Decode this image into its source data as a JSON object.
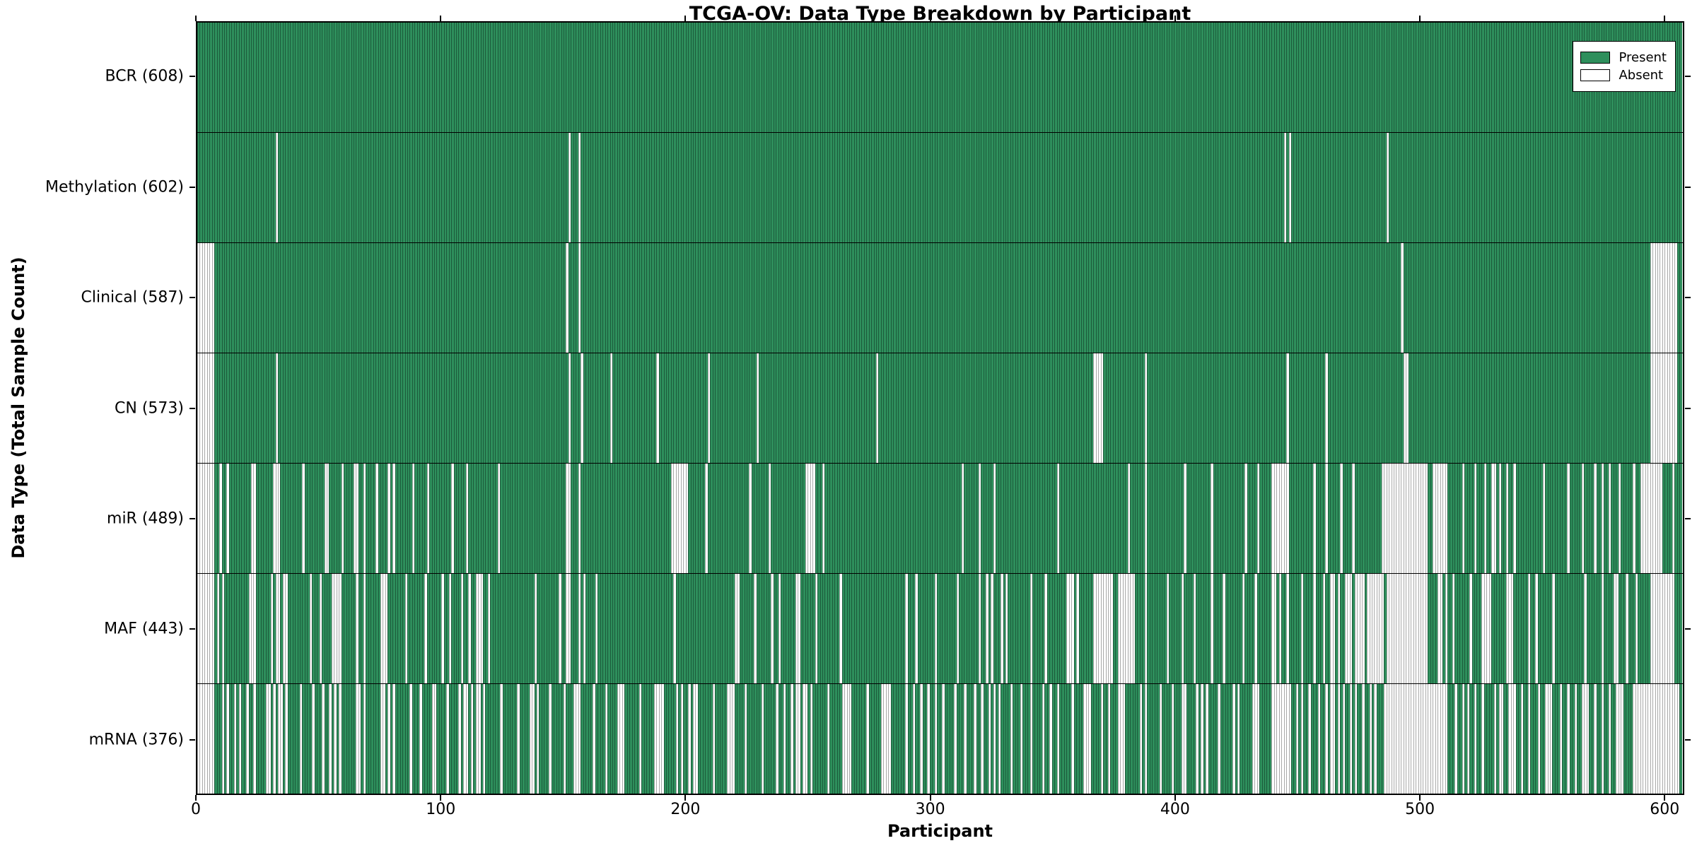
{
  "figure": {
    "title": "TCGA-OV: Data Type Breakdown by Participant",
    "xlabel": "Participant",
    "ylabel": "Data Type (Total Sample Count)"
  },
  "legend": {
    "present_label": "Present",
    "absent_label": "Absent"
  },
  "chart_data": {
    "type": "heatmap",
    "title": "TCGA-OV: Data Type Breakdown by Participant",
    "xlabel": "Participant",
    "ylabel": "Data Type (Total Sample Count)",
    "x_range": [
      0,
      608
    ],
    "n_participants": 608,
    "x_ticks": [
      0,
      100,
      200,
      300,
      400,
      500,
      600
    ],
    "grid": false,
    "legend_position": "upper right",
    "legend": [
      {
        "label": "Present",
        "color": "#2e8f5c"
      },
      {
        "label": "Absent",
        "color": "#ffffff"
      }
    ],
    "colors": {
      "present": "#2e8f5c",
      "present_edge": "rgba(10,40,25,0.5)",
      "absent": "#ffffff",
      "absent_edge": "#a8a8a8",
      "axis": "#000000"
    },
    "rows": [
      {
        "name": "BCR",
        "label": "BCR (608)",
        "present_count": 608,
        "absent_ranges": []
      },
      {
        "name": "Methylation",
        "label": "Methylation (602)",
        "present_count": 602,
        "absent_ranges": [
          [
            32,
            32
          ],
          [
            152,
            152
          ],
          [
            156,
            156
          ],
          [
            445,
            445
          ],
          [
            447,
            447
          ],
          [
            487,
            487
          ]
        ]
      },
      {
        "name": "Clinical",
        "label": "Clinical (587)",
        "present_count": 587,
        "absent_ranges": [
          [
            0,
            6
          ],
          [
            151,
            151
          ],
          [
            156,
            156
          ],
          [
            493,
            493
          ],
          [
            595,
            605
          ]
        ]
      },
      {
        "name": "CN",
        "label": "CN (573)",
        "present_count": 573,
        "absent_ranges": [
          [
            0,
            6
          ],
          [
            32,
            32
          ],
          [
            152,
            152
          ],
          [
            157,
            157
          ],
          [
            169,
            169
          ],
          [
            188,
            188
          ],
          [
            209,
            209
          ],
          [
            229,
            229
          ],
          [
            278,
            278
          ],
          [
            367,
            370
          ],
          [
            388,
            388
          ],
          [
            446,
            446
          ],
          [
            462,
            462
          ],
          [
            494,
            495
          ],
          [
            595,
            605
          ]
        ]
      },
      {
        "name": "miR",
        "label": "miR (489)",
        "present_count": 489,
        "absent_ranges": [
          [
            0,
            6
          ],
          [
            9,
            9
          ],
          [
            12,
            12
          ],
          [
            22,
            23
          ],
          [
            31,
            33
          ],
          [
            43,
            43
          ],
          [
            52,
            53
          ],
          [
            59,
            59
          ],
          [
            64,
            65
          ],
          [
            68,
            68
          ],
          [
            73,
            73
          ],
          [
            78,
            78
          ],
          [
            80,
            80
          ],
          [
            88,
            88
          ],
          [
            94,
            94
          ],
          [
            104,
            104
          ],
          [
            110,
            110
          ],
          [
            123,
            123
          ],
          [
            151,
            152
          ],
          [
            156,
            156
          ],
          [
            194,
            200
          ],
          [
            208,
            208
          ],
          [
            226,
            226
          ],
          [
            234,
            234
          ],
          [
            249,
            252
          ],
          [
            256,
            256
          ],
          [
            313,
            313
          ],
          [
            320,
            320
          ],
          [
            326,
            326
          ],
          [
            352,
            352
          ],
          [
            381,
            381
          ],
          [
            388,
            388
          ],
          [
            404,
            404
          ],
          [
            415,
            415
          ],
          [
            429,
            429
          ],
          [
            434,
            434
          ],
          [
            440,
            446
          ],
          [
            457,
            457
          ],
          [
            462,
            462
          ],
          [
            468,
            468
          ],
          [
            473,
            473
          ],
          [
            485,
            503
          ],
          [
            506,
            511
          ],
          [
            518,
            518
          ],
          [
            523,
            523
          ],
          [
            527,
            527
          ],
          [
            530,
            531
          ],
          [
            533,
            533
          ],
          [
            536,
            536
          ],
          [
            539,
            539
          ],
          [
            551,
            551
          ],
          [
            561,
            561
          ],
          [
            567,
            567
          ],
          [
            572,
            572
          ],
          [
            575,
            575
          ],
          [
            578,
            578
          ],
          [
            582,
            582
          ],
          [
            588,
            588
          ],
          [
            591,
            599
          ],
          [
            604,
            604
          ]
        ]
      },
      {
        "name": "MAF",
        "label": "MAF (443)",
        "present_count": 443,
        "absent_ranges": [
          [
            0,
            6
          ],
          [
            8,
            8
          ],
          [
            10,
            10
          ],
          [
            21,
            23
          ],
          [
            30,
            30
          ],
          [
            32,
            33
          ],
          [
            35,
            36
          ],
          [
            46,
            46
          ],
          [
            50,
            50
          ],
          [
            55,
            58
          ],
          [
            65,
            65
          ],
          [
            68,
            68
          ],
          [
            75,
            77
          ],
          [
            85,
            85
          ],
          [
            93,
            93
          ],
          [
            100,
            100
          ],
          [
            103,
            103
          ],
          [
            108,
            108
          ],
          [
            111,
            111
          ],
          [
            114,
            116
          ],
          [
            119,
            119
          ],
          [
            138,
            138
          ],
          [
            148,
            148
          ],
          [
            151,
            152
          ],
          [
            156,
            156
          ],
          [
            158,
            158
          ],
          [
            163,
            163
          ],
          [
            195,
            195
          ],
          [
            220,
            221
          ],
          [
            228,
            228
          ],
          [
            235,
            235
          ],
          [
            238,
            238
          ],
          [
            245,
            246
          ],
          [
            253,
            253
          ],
          [
            263,
            263
          ],
          [
            290,
            290
          ],
          [
            294,
            294
          ],
          [
            302,
            302
          ],
          [
            311,
            311
          ],
          [
            320,
            320
          ],
          [
            323,
            323
          ],
          [
            325,
            325
          ],
          [
            329,
            329
          ],
          [
            331,
            331
          ],
          [
            341,
            341
          ],
          [
            347,
            347
          ],
          [
            356,
            358
          ],
          [
            360,
            360
          ],
          [
            367,
            374
          ],
          [
            377,
            383
          ],
          [
            388,
            388
          ],
          [
            397,
            397
          ],
          [
            403,
            403
          ],
          [
            408,
            408
          ],
          [
            415,
            415
          ],
          [
            420,
            420
          ],
          [
            428,
            428
          ],
          [
            433,
            433
          ],
          [
            440,
            441
          ],
          [
            443,
            443
          ],
          [
            446,
            446
          ],
          [
            452,
            452
          ],
          [
            457,
            457
          ],
          [
            461,
            461
          ],
          [
            464,
            465
          ],
          [
            467,
            467
          ],
          [
            470,
            472
          ],
          [
            474,
            477
          ],
          [
            479,
            485
          ],
          [
            487,
            503
          ],
          [
            508,
            509
          ],
          [
            511,
            511
          ],
          [
            514,
            514
          ],
          [
            521,
            521
          ],
          [
            526,
            529
          ],
          [
            536,
            538
          ],
          [
            545,
            545
          ],
          [
            548,
            548
          ],
          [
            555,
            555
          ],
          [
            568,
            568
          ],
          [
            575,
            575
          ],
          [
            580,
            581
          ],
          [
            585,
            585
          ],
          [
            589,
            589
          ],
          [
            595,
            604
          ]
        ]
      },
      {
        "name": "mRNA",
        "label": "mRNA (376)",
        "present_count": 376,
        "absent_ranges": [
          [
            0,
            6
          ],
          [
            10,
            10
          ],
          [
            12,
            12
          ],
          [
            15,
            15
          ],
          [
            17,
            17
          ],
          [
            20,
            20
          ],
          [
            23,
            23
          ],
          [
            28,
            29
          ],
          [
            31,
            31
          ],
          [
            33,
            34
          ],
          [
            36,
            36
          ],
          [
            42,
            42
          ],
          [
            47,
            47
          ],
          [
            51,
            51
          ],
          [
            54,
            54
          ],
          [
            56,
            56
          ],
          [
            58,
            58
          ],
          [
            65,
            66
          ],
          [
            68,
            68
          ],
          [
            75,
            76
          ],
          [
            78,
            78
          ],
          [
            80,
            80
          ],
          [
            87,
            87
          ],
          [
            91,
            91
          ],
          [
            96,
            97
          ],
          [
            102,
            102
          ],
          [
            107,
            107
          ],
          [
            109,
            110
          ],
          [
            112,
            112
          ],
          [
            114,
            115
          ],
          [
            117,
            117
          ],
          [
            124,
            124
          ],
          [
            131,
            131
          ],
          [
            136,
            137
          ],
          [
            139,
            139
          ],
          [
            144,
            144
          ],
          [
            150,
            150
          ],
          [
            154,
            156
          ],
          [
            162,
            162
          ],
          [
            167,
            167
          ],
          [
            172,
            174
          ],
          [
            181,
            181
          ],
          [
            187,
            190
          ],
          [
            196,
            196
          ],
          [
            198,
            198
          ],
          [
            201,
            201
          ],
          [
            203,
            204
          ],
          [
            211,
            211
          ],
          [
            217,
            219
          ],
          [
            224,
            224
          ],
          [
            231,
            231
          ],
          [
            237,
            237
          ],
          [
            240,
            240
          ],
          [
            243,
            243
          ],
          [
            245,
            246
          ],
          [
            248,
            249
          ],
          [
            251,
            251
          ],
          [
            258,
            258
          ],
          [
            264,
            267
          ],
          [
            274,
            274
          ],
          [
            280,
            283
          ],
          [
            290,
            290
          ],
          [
            293,
            293
          ],
          [
            296,
            296
          ],
          [
            299,
            299
          ],
          [
            302,
            302
          ],
          [
            305,
            305
          ],
          [
            310,
            310
          ],
          [
            314,
            314
          ],
          [
            318,
            318
          ],
          [
            321,
            321
          ],
          [
            324,
            324
          ],
          [
            326,
            326
          ],
          [
            328,
            328
          ],
          [
            333,
            333
          ],
          [
            337,
            337
          ],
          [
            341,
            341
          ],
          [
            346,
            346
          ],
          [
            349,
            349
          ],
          [
            352,
            352
          ],
          [
            358,
            358
          ],
          [
            363,
            365
          ],
          [
            370,
            370
          ],
          [
            373,
            373
          ],
          [
            377,
            379
          ],
          [
            386,
            386
          ],
          [
            388,
            388
          ],
          [
            394,
            394
          ],
          [
            399,
            399
          ],
          [
            403,
            404
          ],
          [
            409,
            409
          ],
          [
            411,
            411
          ],
          [
            413,
            413
          ],
          [
            418,
            418
          ],
          [
            424,
            424
          ],
          [
            426,
            426
          ],
          [
            432,
            434
          ],
          [
            440,
            447
          ],
          [
            450,
            450
          ],
          [
            452,
            452
          ],
          [
            455,
            455
          ],
          [
            459,
            459
          ],
          [
            462,
            462
          ],
          [
            464,
            465
          ],
          [
            467,
            467
          ],
          [
            469,
            469
          ],
          [
            472,
            472
          ],
          [
            474,
            474
          ],
          [
            477,
            477
          ],
          [
            480,
            480
          ],
          [
            482,
            482
          ],
          [
            486,
            511
          ],
          [
            515,
            515
          ],
          [
            518,
            518
          ],
          [
            520,
            520
          ],
          [
            523,
            523
          ],
          [
            526,
            526
          ],
          [
            531,
            531
          ],
          [
            533,
            534
          ],
          [
            537,
            539
          ],
          [
            542,
            542
          ],
          [
            545,
            545
          ],
          [
            549,
            549
          ],
          [
            552,
            554
          ],
          [
            558,
            558
          ],
          [
            561,
            561
          ],
          [
            564,
            564
          ],
          [
            567,
            569
          ],
          [
            572,
            572
          ],
          [
            575,
            575
          ],
          [
            578,
            578
          ],
          [
            581,
            583
          ],
          [
            588,
            606
          ]
        ]
      }
    ]
  }
}
